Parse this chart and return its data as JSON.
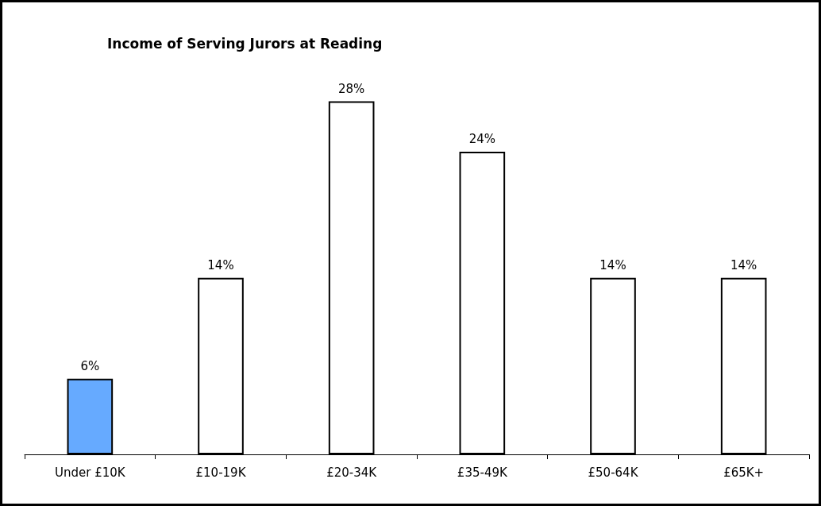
{
  "chart_data": {
    "type": "bar",
    "title": "Income of Serving Jurors at Reading",
    "categories": [
      "Under £10K",
      "£10-19K",
      "£20-34K",
      "£35-49K",
      "£50-64K",
      "£65K+"
    ],
    "values": [
      6,
      14,
      28,
      24,
      14,
      14
    ],
    "colors": [
      "#66aaff",
      "#ffffff",
      "#ffffff",
      "#ffffff",
      "#ffffff",
      "#ffffff"
    ],
    "value_labels": [
      "6%",
      "14%",
      "28%",
      "24%",
      "14%",
      "14%"
    ]
  }
}
